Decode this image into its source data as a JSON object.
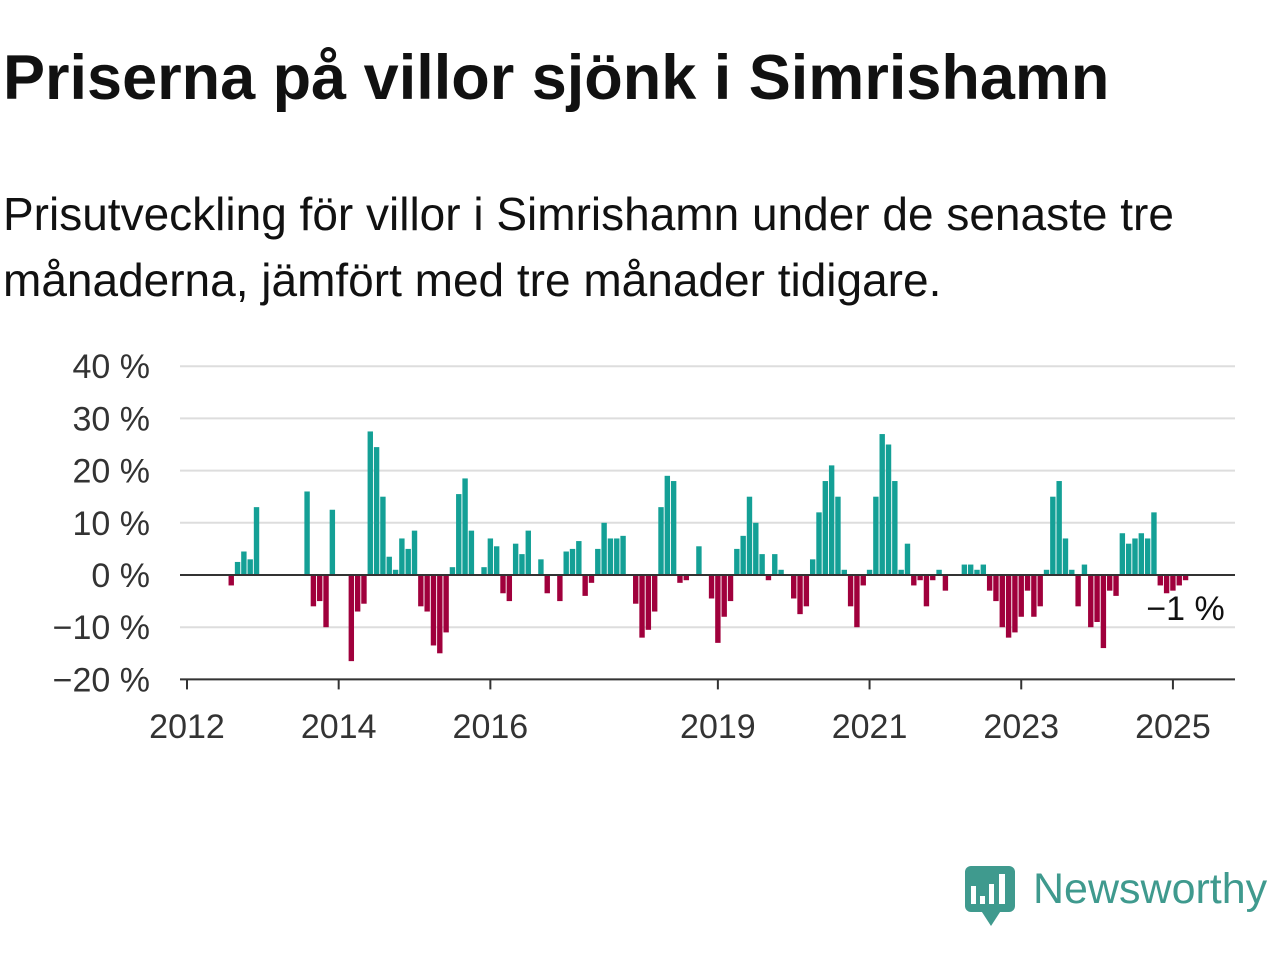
{
  "title": "Priserna på villor sjönk i Simrishamn",
  "subtitle": "Prisutveckling för villor i Simrishamn under de senaste tre månaderna, jämfört med tre månader tidigare.",
  "colors": {
    "positive": "#14a096",
    "negative": "#a0003c",
    "logo": "#3f9a8e"
  },
  "logo": {
    "text": "Newsworthy",
    "icon": "newsworthy-logo-icon"
  },
  "chart_data": {
    "type": "bar",
    "ylim": [
      -20,
      40
    ],
    "grid": true,
    "y_ticks": [
      {
        "value": 40,
        "label": "40 %"
      },
      {
        "value": 30,
        "label": "30 %"
      },
      {
        "value": 20,
        "label": "20 %"
      },
      {
        "value": 10,
        "label": "10 %"
      },
      {
        "value": 0,
        "label": "0 %"
      },
      {
        "value": -10,
        "label": "−10 %"
      },
      {
        "value": -20,
        "label": "−20 %"
      }
    ],
    "x_ticks": [
      {
        "x": "2012-01",
        "label": "2012"
      },
      {
        "x": "2014-01",
        "label": "2014"
      },
      {
        "x": "2016-01",
        "label": "2016"
      },
      {
        "x": "2019-01",
        "label": "2019"
      },
      {
        "x": "2021-01",
        "label": "2021"
      },
      {
        "x": "2023-01",
        "label": "2023"
      },
      {
        "x": "2025-01",
        "label": "2025"
      }
    ],
    "x": [
      "2012-08",
      "2012-09",
      "2012-10",
      "2012-11",
      "2012-12",
      "2013-08",
      "2013-09",
      "2013-10",
      "2013-11",
      "2013-12",
      "2014-03",
      "2014-04",
      "2014-05",
      "2014-06",
      "2014-07",
      "2014-08",
      "2014-09",
      "2014-10",
      "2014-11",
      "2014-12",
      "2015-01",
      "2015-02",
      "2015-03",
      "2015-04",
      "2015-05",
      "2015-06",
      "2015-07",
      "2015-08",
      "2015-09",
      "2015-10",
      "2015-12",
      "2016-01",
      "2016-02",
      "2016-03",
      "2016-04",
      "2016-05",
      "2016-06",
      "2016-07",
      "2016-09",
      "2016-10",
      "2016-12",
      "2017-01",
      "2017-02",
      "2017-03",
      "2017-04",
      "2017-05",
      "2017-06",
      "2017-07",
      "2017-08",
      "2017-09",
      "2017-10",
      "2017-12",
      "2018-01",
      "2018-02",
      "2018-03",
      "2018-04",
      "2018-05",
      "2018-06",
      "2018-07",
      "2018-08",
      "2018-10",
      "2018-12",
      "2019-01",
      "2019-02",
      "2019-03",
      "2019-04",
      "2019-05",
      "2019-06",
      "2019-07",
      "2019-08",
      "2019-09",
      "2019-10",
      "2019-11",
      "2020-01",
      "2020-02",
      "2020-03",
      "2020-04",
      "2020-05",
      "2020-06",
      "2020-07",
      "2020-08",
      "2020-09",
      "2020-10",
      "2020-11",
      "2020-12",
      "2021-01",
      "2021-02",
      "2021-03",
      "2021-04",
      "2021-05",
      "2021-06",
      "2021-07",
      "2021-08",
      "2021-09",
      "2021-10",
      "2021-11",
      "2021-12",
      "2022-01",
      "2022-04",
      "2022-05",
      "2022-06",
      "2022-07",
      "2022-08",
      "2022-09",
      "2022-10",
      "2022-11",
      "2022-12",
      "2023-01",
      "2023-02",
      "2023-03",
      "2023-04",
      "2023-05",
      "2023-06",
      "2023-07",
      "2023-08",
      "2023-09",
      "2023-10",
      "2023-11",
      "2023-12",
      "2024-01",
      "2024-02",
      "2024-03",
      "2024-04",
      "2024-05",
      "2024-06",
      "2024-07",
      "2024-08",
      "2024-09",
      "2024-10",
      "2024-11",
      "2024-12",
      "2025-01",
      "2025-02",
      "2025-03"
    ],
    "values": [
      -2,
      2.5,
      4.5,
      3,
      13,
      16,
      -6,
      -5,
      -10,
      12.5,
      -16.5,
      -7,
      -5.5,
      27.5,
      24.5,
      15,
      3.5,
      1,
      7,
      5,
      8.5,
      -6,
      -7,
      -13.5,
      -15,
      -11,
      1.5,
      15.5,
      18.5,
      8.5,
      1.5,
      7,
      5.5,
      -3.5,
      -5,
      6,
      4,
      8.5,
      3,
      -3.5,
      -5,
      4.5,
      5,
      6.5,
      -4,
      -1.5,
      5,
      10,
      7,
      7,
      7.5,
      -5.5,
      -12,
      -10.5,
      -7,
      13,
      19,
      18,
      -1.5,
      -1,
      5.5,
      -4.5,
      -13,
      -8,
      -5,
      5,
      7.5,
      15,
      10,
      4,
      -1,
      4,
      1,
      -4.5,
      -7.5,
      -6,
      3,
      12,
      18,
      21,
      15,
      1,
      -6,
      -10,
      -2,
      1,
      15,
      27,
      25,
      18,
      1,
      6,
      -2,
      -1,
      -6,
      -1,
      1,
      -3,
      2,
      2,
      1,
      2,
      -3,
      -5,
      -10,
      -12,
      -11,
      -8,
      -3,
      -8,
      -6,
      1,
      15,
      18,
      7,
      1,
      -6,
      2,
      -10,
      -9,
      -14,
      -3,
      -4,
      8,
      6,
      7,
      8,
      7,
      12,
      -2,
      -3.5,
      -3,
      -2,
      -1
    ],
    "annotation": {
      "x": "2025-03",
      "value": -1,
      "label": "−1 %"
    }
  }
}
